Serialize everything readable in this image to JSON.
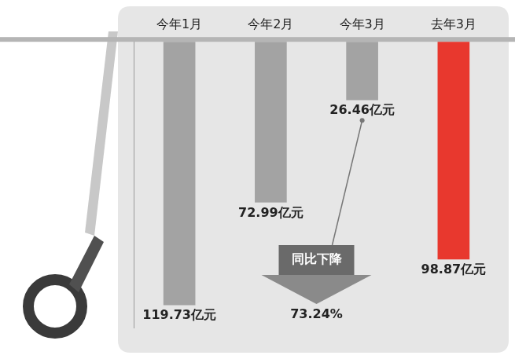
{
  "chart_data": {
    "type": "bar",
    "categories": [
      "今年1月",
      "今年2月",
      "今年3月",
      "去年3月"
    ],
    "values": [
      119.73,
      72.99,
      26.46,
      98.87
    ],
    "value_labels": [
      "119.73亿元",
      "72.99亿元",
      "26.46亿元",
      "98.87亿元"
    ],
    "colors": [
      "#a3a3a3",
      "#a3a3a3",
      "#a3a3a3",
      "#e8382e"
    ],
    "ylim": [
      0,
      130
    ],
    "data_labels": true,
    "tick_labels": "x",
    "grid": false,
    "annotations": [
      "同比下降",
      "73.24%"
    ]
  }
}
